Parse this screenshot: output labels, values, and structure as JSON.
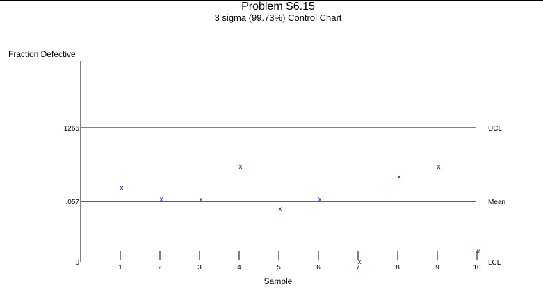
{
  "chart_data": {
    "type": "scatter",
    "title": "Problem S6.15",
    "subtitle": "3 sigma (99.73%) Control Chart",
    "ylabel": "Fraction Defective",
    "xlabel": "Sample",
    "x": [
      1,
      2,
      3,
      4,
      5,
      6,
      7,
      8,
      9,
      10
    ],
    "values": [
      0.07,
      0.059,
      0.059,
      0.09,
      0.05,
      0.059,
      0.0,
      0.08,
      0.09,
      0.01
    ],
    "ylim": [
      0,
      0.1266
    ],
    "xlim": [
      0,
      10
    ],
    "y_ticks": [
      {
        "value": 0,
        "label": "0"
      },
      {
        "value": 0.057,
        "label": ".057"
      },
      {
        "value": 0.1266,
        "label": ".1266"
      }
    ],
    "control_lines": [
      {
        "value": 0.1266,
        "label": "UCL"
      },
      {
        "value": 0.057,
        "label": "Mean"
      },
      {
        "value": 0,
        "label": "LCL"
      }
    ],
    "marker": "x",
    "marker_color": "#0000cc",
    "grid": false
  }
}
